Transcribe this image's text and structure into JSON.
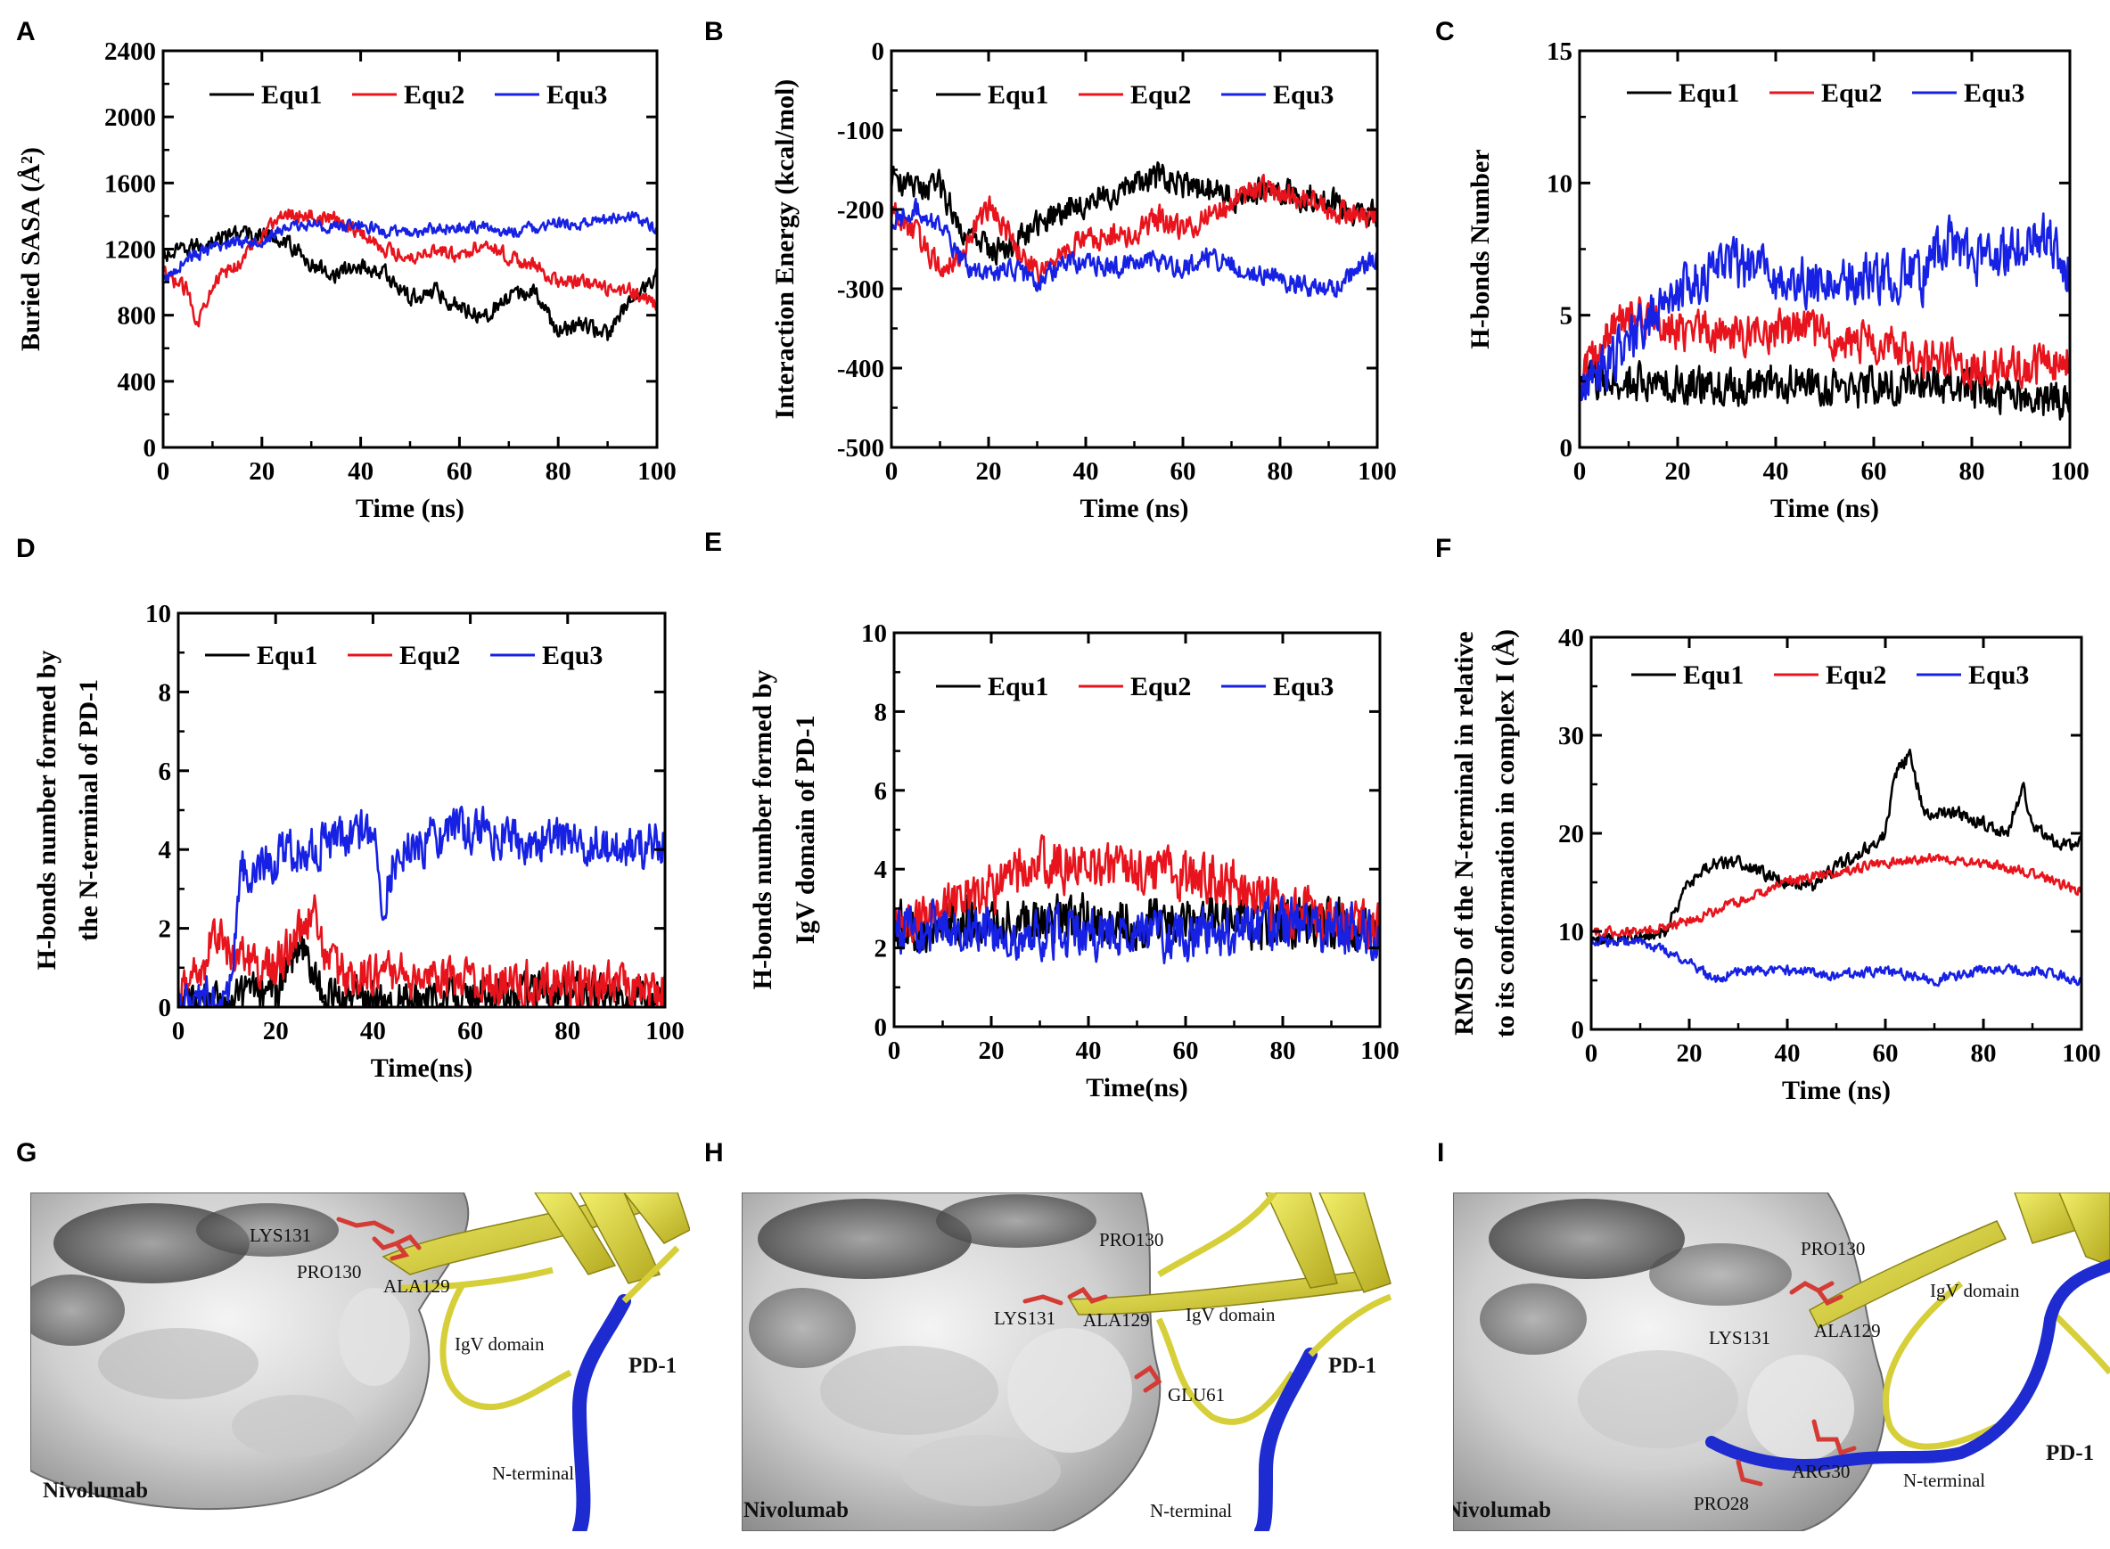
{
  "chart_data": [
    {
      "panel": "A",
      "type": "line",
      "title": "",
      "xlabel": "Time (ns)",
      "ylabel": "Buried SASA (Å²)",
      "xlim": [
        0,
        100
      ],
      "ylim": [
        0,
        2400
      ],
      "xticks": [
        0,
        20,
        40,
        60,
        80,
        100
      ],
      "yticks": [
        0,
        400,
        800,
        1200,
        1600,
        2000,
        2400
      ],
      "legend": "top-center",
      "grid": false,
      "series": [
        {
          "name": "Equ1",
          "color": "#000000",
          "noise": 70,
          "x": [
            0,
            5,
            10,
            15,
            20,
            25,
            30,
            35,
            40,
            45,
            50,
            55,
            60,
            65,
            70,
            75,
            80,
            85,
            90,
            95,
            100
          ],
          "y": [
            1150,
            1200,
            1250,
            1300,
            1280,
            1250,
            1100,
            1050,
            1100,
            1050,
            900,
            950,
            850,
            800,
            900,
            950,
            700,
            750,
            680,
            900,
            1050
          ]
        },
        {
          "name": "Equ2",
          "color": "#e8141d",
          "noise": 60,
          "x": [
            0,
            5,
            7,
            10,
            15,
            20,
            25,
            30,
            35,
            40,
            45,
            50,
            55,
            60,
            65,
            70,
            75,
            80,
            85,
            90,
            95,
            100
          ],
          "y": [
            1050,
            950,
            750,
            1000,
            1100,
            1300,
            1420,
            1400,
            1380,
            1300,
            1200,
            1150,
            1200,
            1150,
            1250,
            1150,
            1100,
            1000,
            1000,
            950,
            950,
            850
          ]
        },
        {
          "name": "Equ3",
          "color": "#1721e4",
          "noise": 50,
          "x": [
            0,
            5,
            10,
            15,
            20,
            25,
            30,
            35,
            40,
            45,
            50,
            55,
            60,
            65,
            70,
            75,
            80,
            85,
            90,
            95,
            100
          ],
          "y": [
            1000,
            1150,
            1200,
            1250,
            1250,
            1330,
            1350,
            1330,
            1350,
            1300,
            1300,
            1320,
            1330,
            1330,
            1300,
            1330,
            1350,
            1350,
            1380,
            1400,
            1320
          ]
        }
      ]
    },
    {
      "panel": "B",
      "type": "line",
      "title": "",
      "xlabel": "Time (ns)",
      "ylabel": "Interaction Energy (kcal/mol)",
      "xlim": [
        0,
        100
      ],
      "ylim": [
        -500,
        0
      ],
      "xticks": [
        0,
        20,
        40,
        60,
        80,
        100
      ],
      "yticks": [
        -500,
        -400,
        -300,
        -200,
        -100,
        0
      ],
      "legend": "top-center",
      "grid": false,
      "series": [
        {
          "name": "Equ1",
          "color": "#000000",
          "noise": 25,
          "x": [
            0,
            5,
            10,
            15,
            20,
            25,
            30,
            35,
            40,
            45,
            50,
            55,
            60,
            65,
            70,
            75,
            80,
            85,
            90,
            95,
            100
          ],
          "y": [
            -160,
            -175,
            -170,
            -230,
            -250,
            -245,
            -220,
            -200,
            -190,
            -180,
            -170,
            -160,
            -170,
            -175,
            -185,
            -180,
            -175,
            -185,
            -190,
            -205,
            -205
          ]
        },
        {
          "name": "Equ2",
          "color": "#e8141d",
          "noise": 22,
          "x": [
            0,
            5,
            10,
            15,
            20,
            25,
            30,
            35,
            40,
            45,
            50,
            55,
            60,
            65,
            70,
            75,
            80,
            85,
            90,
            95,
            100
          ],
          "y": [
            -200,
            -230,
            -275,
            -250,
            -195,
            -240,
            -285,
            -255,
            -240,
            -235,
            -230,
            -210,
            -225,
            -210,
            -190,
            -175,
            -180,
            -190,
            -200,
            -205,
            -210
          ]
        },
        {
          "name": "Equ3",
          "color": "#1721e4",
          "noise": 18,
          "x": [
            0,
            5,
            10,
            15,
            20,
            25,
            30,
            35,
            40,
            45,
            50,
            55,
            60,
            65,
            70,
            75,
            80,
            85,
            90,
            95,
            100
          ],
          "y": [
            -220,
            -200,
            -220,
            -270,
            -285,
            -275,
            -290,
            -270,
            -265,
            -275,
            -270,
            -265,
            -275,
            -260,
            -270,
            -280,
            -290,
            -295,
            -305,
            -280,
            -260
          ]
        }
      ]
    },
    {
      "panel": "C",
      "type": "line",
      "title": "",
      "xlabel": "Time (ns)",
      "ylabel": "H-bonds Number",
      "xlim": [
        0,
        100
      ],
      "ylim": [
        0,
        15
      ],
      "xticks": [
        0,
        20,
        40,
        60,
        80,
        100
      ],
      "yticks": [
        0,
        5,
        10,
        15
      ],
      "legend": "top-center",
      "grid": false,
      "series": [
        {
          "name": "Equ1",
          "color": "#000000",
          "noise": 1.1,
          "x": [
            0,
            10,
            20,
            30,
            40,
            50,
            60,
            70,
            80,
            90,
            100
          ],
          "y": [
            2.5,
            2.4,
            2.3,
            2.2,
            2.5,
            2.3,
            2.2,
            2.5,
            2.2,
            2.0,
            1.8
          ]
        },
        {
          "name": "Equ2",
          "color": "#e8141d",
          "noise": 1.1,
          "x": [
            0,
            5,
            10,
            20,
            30,
            40,
            50,
            60,
            70,
            80,
            90,
            100
          ],
          "y": [
            2.5,
            4.0,
            5.0,
            4.5,
            4.3,
            4.5,
            4.2,
            4.0,
            3.5,
            3.0,
            3.0,
            3.2
          ]
        },
        {
          "name": "Equ3",
          "color": "#1721e4",
          "noise": 1.3,
          "x": [
            0,
            5,
            10,
            15,
            20,
            25,
            30,
            40,
            50,
            60,
            70,
            75,
            80,
            90,
            95,
            100
          ],
          "y": [
            2.5,
            3.0,
            4.0,
            5.0,
            6.0,
            6.5,
            7.0,
            6.5,
            6.2,
            6.5,
            6.5,
            8.0,
            7.0,
            7.5,
            8.0,
            6.5
          ]
        }
      ]
    },
    {
      "panel": "D",
      "type": "line",
      "title": "",
      "xlabel": "Time(ns)",
      "ylabel": "H-bonds number formed by the N-terminal of PD-1",
      "xlim": [
        0,
        100
      ],
      "ylim": [
        0,
        10
      ],
      "xticks": [
        0,
        20,
        40,
        60,
        80,
        100
      ],
      "yticks": [
        0,
        2,
        4,
        6,
        8,
        10
      ],
      "legend": "top-center",
      "grid": false,
      "series": [
        {
          "name": "Equ1",
          "color": "#000000",
          "noise": 0.7,
          "x": [
            0,
            10,
            20,
            25,
            30,
            40,
            70,
            90,
            100
          ],
          "y": [
            0.2,
            0.1,
            0.5,
            1.5,
            0.3,
            0.1,
            0.3,
            0.4,
            0.2
          ]
        },
        {
          "name": "Equ2",
          "color": "#e8141d",
          "noise": 0.8,
          "x": [
            0,
            5,
            8,
            12,
            20,
            25,
            28,
            32,
            40,
            60,
            80,
            100
          ],
          "y": [
            0.3,
            1.0,
            2.0,
            1.2,
            1.0,
            2.0,
            2.2,
            0.8,
            0.8,
            0.7,
            0.6,
            0.4
          ]
        },
        {
          "name": "Equ3",
          "color": "#1721e4",
          "noise": 0.8,
          "x": [
            0,
            10,
            13,
            20,
            30,
            40,
            42,
            45,
            50,
            60,
            70,
            80,
            90,
            100
          ],
          "y": [
            0.1,
            0.2,
            3.5,
            3.7,
            4.2,
            4.5,
            2.5,
            4.0,
            4.2,
            4.5,
            4.2,
            4.3,
            4.0,
            4.2
          ]
        }
      ]
    },
    {
      "panel": "E",
      "type": "line",
      "title": "",
      "xlabel": "Time(ns)",
      "ylabel": "H-bonds number formed by IgV domain of PD-1",
      "xlim": [
        0,
        100
      ],
      "ylim": [
        0,
        10
      ],
      "xticks": [
        0,
        20,
        40,
        60,
        80,
        100
      ],
      "yticks": [
        0,
        2,
        4,
        6,
        8,
        10
      ],
      "legend": "top-center",
      "grid": false,
      "series": [
        {
          "name": "Equ1",
          "color": "#000000",
          "noise": 0.9,
          "x": [
            0,
            20,
            40,
            60,
            80,
            100
          ],
          "y": [
            2.6,
            2.6,
            2.7,
            2.6,
            2.7,
            2.5
          ]
        },
        {
          "name": "Equ2",
          "color": "#e8141d",
          "noise": 0.9,
          "x": [
            0,
            10,
            20,
            30,
            40,
            50,
            60,
            70,
            80,
            90,
            100
          ],
          "y": [
            2.5,
            3.0,
            3.5,
            4.2,
            4.0,
            3.8,
            3.8,
            3.7,
            3.0,
            2.8,
            2.5
          ]
        },
        {
          "name": "Equ3",
          "color": "#1721e4",
          "noise": 0.9,
          "x": [
            0,
            20,
            40,
            60,
            80,
            100
          ],
          "y": [
            2.5,
            2.5,
            2.4,
            2.3,
            2.6,
            2.4
          ]
        }
      ]
    },
    {
      "panel": "F",
      "type": "line",
      "title": "",
      "xlabel": "Time (ns)",
      "ylabel": "RMSD of the N-terminal in relative to its conformation in complex I (Å)",
      "xlim": [
        0,
        100
      ],
      "ylim": [
        0,
        40
      ],
      "xticks": [
        0,
        20,
        40,
        60,
        80,
        100
      ],
      "yticks": [
        0,
        10,
        20,
        30,
        40
      ],
      "legend": "top-center",
      "grid": false,
      "series": [
        {
          "name": "Equ1",
          "color": "#000000",
          "noise": 0.9,
          "x": [
            0,
            10,
            15,
            20,
            25,
            30,
            35,
            40,
            45,
            50,
            55,
            60,
            62,
            65,
            68,
            70,
            75,
            80,
            85,
            88,
            90,
            95,
            100
          ],
          "y": [
            9,
            9.5,
            10,
            15,
            17,
            17,
            16,
            15,
            14.5,
            16.5,
            18,
            20,
            26,
            28,
            22,
            22,
            22,
            21,
            20,
            25,
            21,
            19,
            19
          ]
        },
        {
          "name": "Equ2",
          "color": "#e8141d",
          "noise": 0.7,
          "x": [
            0,
            10,
            20,
            25,
            30,
            35,
            40,
            50,
            60,
            70,
            80,
            90,
            100
          ],
          "y": [
            10,
            10,
            11,
            12,
            13,
            14,
            15,
            16,
            17,
            17.5,
            17,
            16,
            14
          ]
        },
        {
          "name": "Equ3",
          "color": "#1721e4",
          "noise": 0.7,
          "x": [
            0,
            10,
            20,
            25,
            30,
            40,
            50,
            60,
            70,
            80,
            90,
            100
          ],
          "y": [
            9,
            9,
            7,
            5,
            6,
            6,
            5.5,
            6,
            5,
            6,
            6,
            5
          ]
        }
      ]
    }
  ],
  "panels_structure": [
    {
      "panel": "G",
      "labels": {
        "lys131": "LYS131",
        "pro130": "PRO130",
        "ala129": "ALA129",
        "igv": "IgV domain",
        "pd1": "PD-1",
        "nterm": "N-terminal",
        "nivolumab": "Nivolumab"
      }
    },
    {
      "panel": "H",
      "labels": {
        "pro130": "PRO130",
        "lys131": "LYS131",
        "ala129": "ALA129",
        "igv": "IgV domain",
        "glu61": "GLU61",
        "pd1": "PD-1",
        "nterm": "N-terminal",
        "nivolumab": "Nivolumab"
      }
    },
    {
      "panel": "I",
      "labels": {
        "pro130": "PRO130",
        "igv": "IgV domain",
        "lys131": "LYS131",
        "ala129": "ALA129",
        "arg30": "ARG30",
        "nterm": "N-terminal",
        "pro28": "PRO28",
        "pd1": "PD-1",
        "nivolumab": "Nivolumab"
      }
    }
  ]
}
